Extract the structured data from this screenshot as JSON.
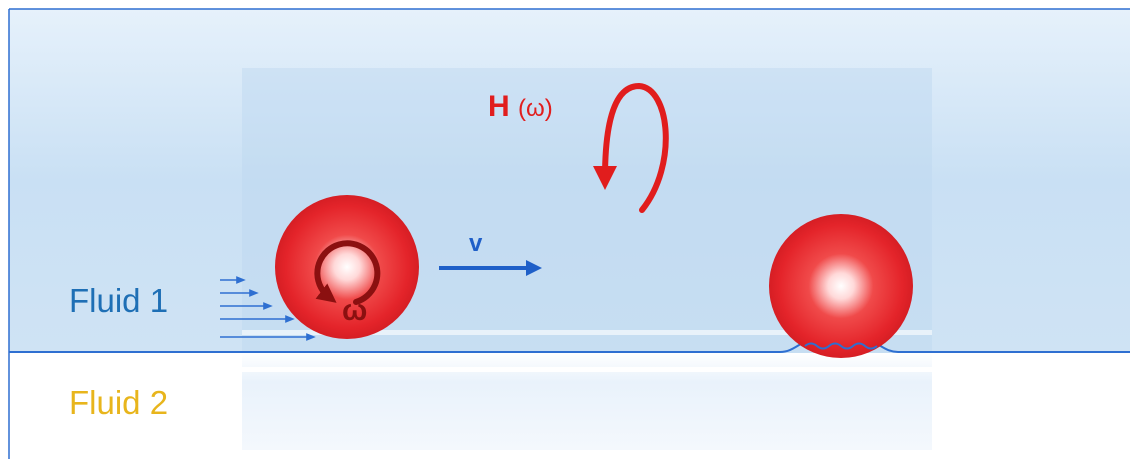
{
  "labels": {
    "fluid1": "Fluid 1",
    "fluid2": "Fluid 2",
    "field_symbol": "H",
    "field_arg": "(ω)",
    "rotation": "ω",
    "velocity": "v"
  },
  "colors": {
    "fluid1_fill": "#cfe3f4",
    "interface_line": "#2e6fd1",
    "fluid1_text": "#1e6fb5",
    "fluid2_text": "#e8b51c",
    "field_arrow": "#e11d1d",
    "sphere": "#e8262a",
    "rotation_arrow": "#8b1010",
    "velocity_arrow": "#1f5fc8"
  },
  "icons": {
    "field_arrow": "curved-rotation-arrow",
    "rotation_arrow": "circular-arrow",
    "velocity_arrow": "right-arrow",
    "flow_arrows": "right-arrow-stack"
  }
}
